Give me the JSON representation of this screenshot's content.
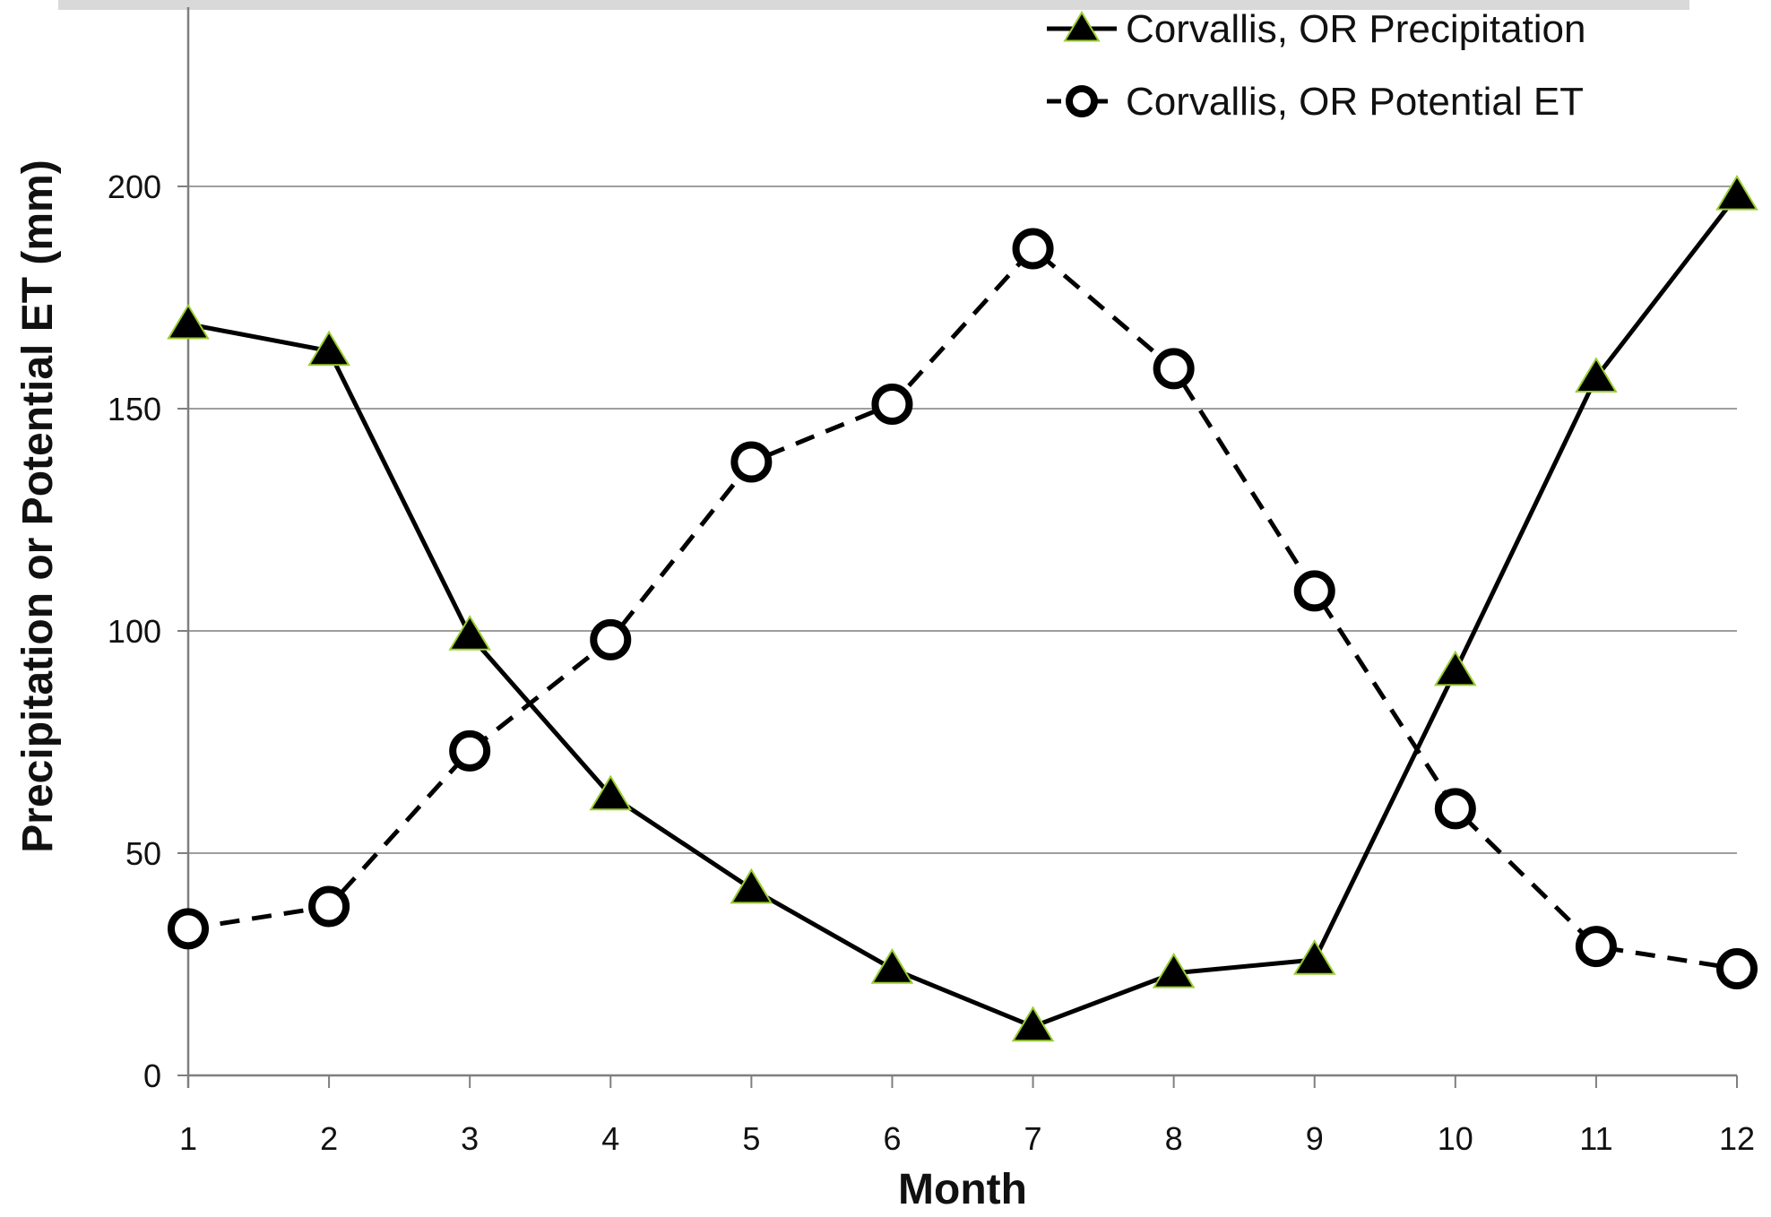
{
  "chart_data": {
    "type": "line",
    "xlabel": "Month",
    "ylabel": "Precipitation or Potential ET (mm)",
    "x": [
      1,
      2,
      3,
      4,
      5,
      6,
      7,
      8,
      9,
      10,
      11,
      12
    ],
    "ylim": [
      0,
      200
    ],
    "yticks": [
      0,
      50,
      100,
      150,
      200
    ],
    "grid": true,
    "legend_position": "top-right",
    "series": [
      {
        "name": "Corvallis, OR Precipitation",
        "values": [
          169,
          163,
          99,
          63,
          42,
          24,
          11,
          23,
          26,
          91,
          157,
          198
        ],
        "style": "solid",
        "marker": "triangle",
        "color": "#000000",
        "marker_edge_color": "#9acd32"
      },
      {
        "name": "Corvallis, OR Potential ET",
        "values": [
          33,
          38,
          73,
          98,
          138,
          151,
          186,
          159,
          109,
          60,
          29,
          24
        ],
        "style": "dashed",
        "marker": "circle",
        "color": "#000000"
      }
    ]
  },
  "colors": {
    "grid": "#9e9e9e",
    "axis": "#7f7f7f",
    "top_band": "#d9d9d9"
  }
}
